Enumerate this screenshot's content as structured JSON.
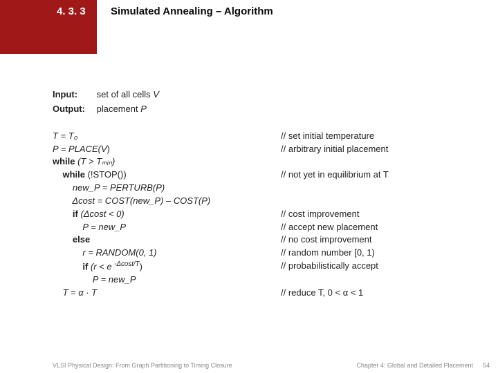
{
  "header": {
    "section_number": "4. 3. 3",
    "title": "Simulated Annealing – Algorithm",
    "red_color": "#a01818"
  },
  "io": {
    "input_label": "Input:",
    "input_text_prefix": "set of all cells ",
    "input_var": "V",
    "output_label": "Output:",
    "output_text_prefix": "placement ",
    "output_var": "P"
  },
  "algo": {
    "l1_code": "T = T₀",
    "l1_comment": "// set initial temperature",
    "l2_code_pre": "P = PLACE(",
    "l2_code_var": "V",
    "l2_code_post": ")",
    "l2_comment": "// arbitrary initial placement",
    "l3_kw": "while",
    "l3_rest": " (T > Tₘᵢₙ)",
    "l4_kw": "while",
    "l4_rest": " (!STOP())",
    "l4_comment": "// not yet in equilibrium at T",
    "l5_code": "new_P = PERTURB(P)",
    "l6_code": "Δcost = COST(new_P) – COST(P)",
    "l7_kw": "if",
    "l7_rest": " (Δcost < 0)",
    "l7_comment": "// cost improvement",
    "l8_code": "P = new_P",
    "l8_comment": "// accept new placement",
    "l9_kw": "else",
    "l9_comment": "// no cost improvement",
    "l10_code": "r = RANDOM(0, 1)",
    "l10_comment": "// random number [0, 1)",
    "l11_kw": "if",
    "l11_rest_pre": " (r < e ",
    "l11_exp": "-Δcost/T",
    "l11_rest_post": ")",
    "l11_comment": "// probabilistically accept",
    "l12_code": "P = new_P",
    "l13_code": "T = α · T",
    "l13_comment": "// reduce T, 0 < α < 1"
  },
  "footer": {
    "left": "VLSI Physical Design: From Graph Partitioning to Timing Closure",
    "right": "Chapter 4: Global and Detailed Placement",
    "page": "54"
  }
}
